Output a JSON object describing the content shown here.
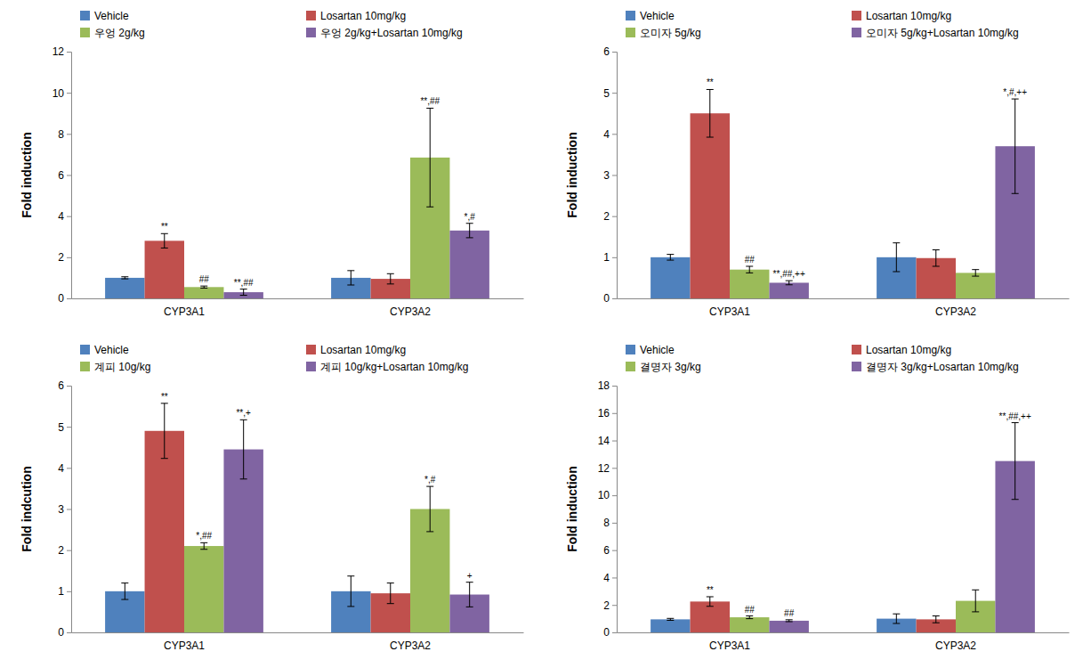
{
  "chart_data": [
    {
      "type": "bar",
      "y_label": "Fold induction",
      "categories": [
        "CYP3A1",
        "CYP3A2"
      ],
      "ylim": [
        0,
        12
      ],
      "yticks": [
        0,
        2,
        4,
        6,
        8,
        10,
        12
      ],
      "grid": false,
      "legend": "top",
      "series": [
        {
          "name": "Vehicle",
          "color": "#4F81BD",
          "values": [
            1.0,
            1.0
          ],
          "errors": [
            0.05,
            0.35
          ],
          "annotations": [
            null,
            null
          ]
        },
        {
          "name": "Losartan 10mg/kg",
          "color": "#C0504D",
          "values": [
            2.8,
            0.95
          ],
          "errors": [
            0.35,
            0.25
          ],
          "annotations": [
            "**",
            null
          ]
        },
        {
          "name": "우엉 2g/kg",
          "color": "#9BBB59",
          "values": [
            0.55,
            6.85
          ],
          "errors": [
            0.05,
            2.4
          ],
          "annotations": [
            "##",
            "**,##"
          ]
        },
        {
          "name": "우엉 2g/kg+Losartan 10mg/kg",
          "color": "#8064A2",
          "values": [
            0.3,
            3.3
          ],
          "errors": [
            0.15,
            0.35
          ],
          "annotations": [
            "**,##",
            "*,#"
          ]
        }
      ]
    },
    {
      "type": "bar",
      "y_label": "Fold induction",
      "categories": [
        "CYP3A1",
        "CYP3A2"
      ],
      "ylim": [
        0,
        6
      ],
      "yticks": [
        0,
        1,
        2,
        3,
        4,
        5,
        6
      ],
      "grid": false,
      "legend": "top",
      "series": [
        {
          "name": "Vehicle",
          "color": "#4F81BD",
          "values": [
            1.0,
            1.0
          ],
          "errors": [
            0.07,
            0.35
          ],
          "annotations": [
            null,
            null
          ]
        },
        {
          "name": "Losartan 10mg/kg",
          "color": "#C0504D",
          "values": [
            4.5,
            0.98
          ],
          "errors": [
            0.58,
            0.2
          ],
          "annotations": [
            "**",
            null
          ]
        },
        {
          "name": "오미자 5g/kg",
          "color": "#9BBB59",
          "values": [
            0.7,
            0.62
          ],
          "errors": [
            0.08,
            0.08
          ],
          "annotations": [
            "##",
            null
          ]
        },
        {
          "name": "오미자 5g/kg+Losartan 10mg/kg",
          "color": "#8064A2",
          "values": [
            0.38,
            3.7
          ],
          "errors": [
            0.05,
            1.15
          ],
          "annotations": [
            "**,##,++",
            "*,#,++"
          ]
        }
      ]
    },
    {
      "type": "bar",
      "y_label": "Fold indcution",
      "categories": [
        "CYP3A1",
        "CYP3A2"
      ],
      "ylim": [
        0,
        6
      ],
      "yticks": [
        0,
        1,
        2,
        3,
        4,
        5,
        6
      ],
      "grid": false,
      "legend": "top",
      "series": [
        {
          "name": "Vehicle",
          "color": "#4F81BD",
          "values": [
            1.0,
            1.0
          ],
          "errors": [
            0.2,
            0.37
          ],
          "annotations": [
            null,
            null
          ]
        },
        {
          "name": "Losartan 10mg/kg",
          "color": "#C0504D",
          "values": [
            4.9,
            0.95
          ],
          "errors": [
            0.67,
            0.25
          ],
          "annotations": [
            "**",
            null
          ]
        },
        {
          "name": "계피 10g/kg",
          "color": "#9BBB59",
          "values": [
            2.1,
            3.0
          ],
          "errors": [
            0.08,
            0.55
          ],
          "annotations": [
            "*,##",
            "*,#"
          ]
        },
        {
          "name": "계피 10g/kg+Losartan 10mg/kg",
          "color": "#8064A2",
          "values": [
            4.45,
            0.92
          ],
          "errors": [
            0.72,
            0.3
          ],
          "annotations": [
            "**,+",
            "+"
          ]
        }
      ]
    },
    {
      "type": "bar",
      "y_label": "Fold induction",
      "categories": [
        "CYP3A1",
        "CYP3A2"
      ],
      "ylim": [
        0,
        18
      ],
      "yticks": [
        0,
        2,
        4,
        6,
        8,
        10,
        12,
        14,
        16,
        18
      ],
      "grid": false,
      "legend": "top",
      "series": [
        {
          "name": "Vehicle",
          "color": "#4F81BD",
          "values": [
            0.95,
            1.0
          ],
          "errors": [
            0.07,
            0.35
          ],
          "annotations": [
            null,
            null
          ]
        },
        {
          "name": "Losartan 10mg/kg",
          "color": "#C0504D",
          "values": [
            2.25,
            0.95
          ],
          "errors": [
            0.35,
            0.25
          ],
          "annotations": [
            "**",
            null
          ]
        },
        {
          "name": "결명자 3g/kg",
          "color": "#9BBB59",
          "values": [
            1.1,
            2.3
          ],
          "errors": [
            0.1,
            0.8
          ],
          "annotations": [
            "##",
            null
          ]
        },
        {
          "name": "결명자 3g/kg+Losartan 10mg/kg",
          "color": "#8064A2",
          "values": [
            0.85,
            12.5
          ],
          "errors": [
            0.07,
            2.8
          ],
          "annotations": [
            "##",
            "**,##,++"
          ]
        }
      ]
    }
  ]
}
